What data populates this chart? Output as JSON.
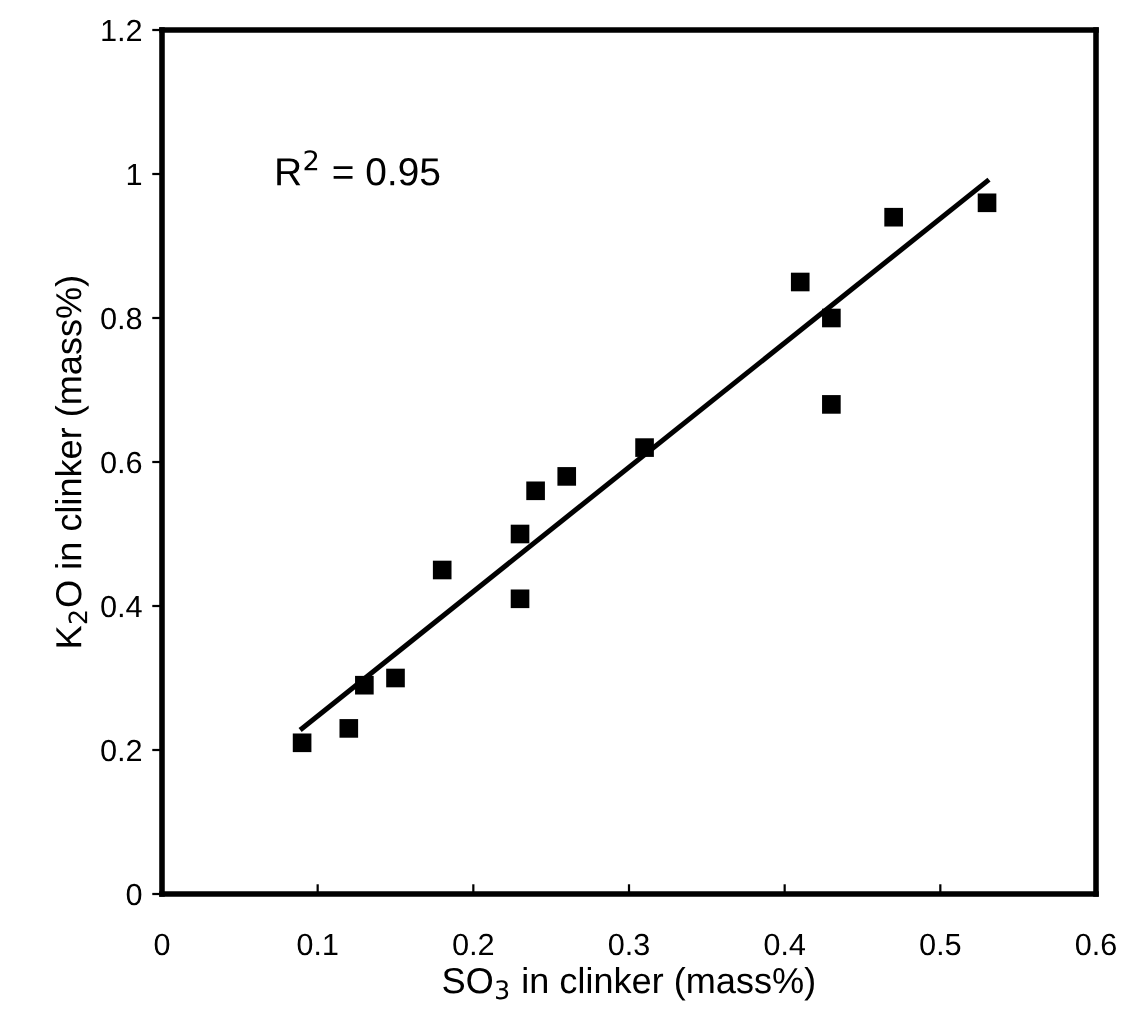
{
  "chart_data": {
    "type": "scatter",
    "xlabel": "SO$_{3}$ in clinker (mass%)",
    "ylabel": "K$_{2}$O in clinker (mass%)",
    "annotations": [
      "R$^{2}$ = 0.95"
    ],
    "series": [
      {
        "color": "#000000",
        "marker": "square",
        "x": [
          0.09,
          0.12,
          0.13,
          0.15,
          0.18,
          0.23,
          0.23,
          0.24,
          0.26,
          0.31,
          0.41,
          0.43,
          0.43,
          0.47,
          0.53
        ],
        "values": [
          0.21,
          0.23,
          0.29,
          0.3,
          0.45,
          0.5,
          0.41,
          0.56,
          0.58,
          0.62,
          0.85,
          0.8,
          0.68,
          0.94,
          0.96
        ]
      },
      {
        "type": "line",
        "color": "#000000",
        "line_style": "solid",
        "x": [
          0.09,
          0.53
        ],
        "values": [
          0.23,
          0.99
        ]
      }
    ],
    "xlim": [
      0,
      0.6
    ],
    "xticks": [
      0,
      0.1,
      0.2,
      0.3,
      0.4,
      0.5,
      0.6
    ],
    "ylim": [
      0,
      1.2
    ],
    "yticks": [
      0,
      0.2,
      0.4,
      0.6,
      0.8,
      1,
      1.2
    ],
    "grid": false,
    "legend": false
  }
}
